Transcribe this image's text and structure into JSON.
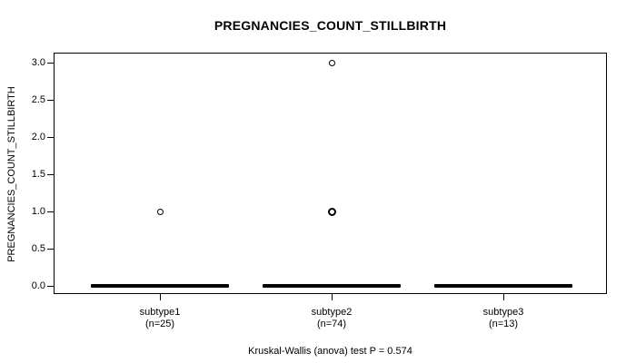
{
  "title": "PREGNANCIES_COUNT_STILLBIRTH",
  "caption": "Kruskal-Wallis (anova) test P = 0.574",
  "colors": {
    "ink": "#000000",
    "background": "#ffffff"
  },
  "chart_data": {
    "type": "boxplot",
    "title": "PREGNANCIES_COUNT_STILLBIRTH",
    "ylabel": "PREGNANCIES_COUNT_STILLBIRTH",
    "xlabel": "",
    "ylim": [
      0.0,
      3.0
    ],
    "yticks": [
      0.0,
      0.5,
      1.0,
      1.5,
      2.0,
      2.5,
      3.0
    ],
    "grid": false,
    "stat_test": "Kruskal-Wallis (anova)",
    "p_value": 0.574,
    "groups": [
      {
        "label": "subtype1",
        "count_label": "(n=25)",
        "n": 25,
        "min": 0,
        "q1": 0,
        "median": 0,
        "q3": 0,
        "max": 0,
        "outliers": [
          {
            "value": 1.0,
            "emphasis": "normal"
          }
        ]
      },
      {
        "label": "subtype2",
        "count_label": "(n=74)",
        "n": 74,
        "min": 0,
        "q1": 0,
        "median": 0,
        "q3": 0,
        "max": 0,
        "outliers": [
          {
            "value": 3.0,
            "emphasis": "normal"
          },
          {
            "value": 1.0,
            "emphasis": "bold"
          }
        ]
      },
      {
        "label": "subtype3",
        "count_label": "(n=13)",
        "n": 13,
        "min": 0,
        "q1": 0,
        "median": 0,
        "q3": 0,
        "max": 0,
        "outliers": []
      }
    ]
  }
}
